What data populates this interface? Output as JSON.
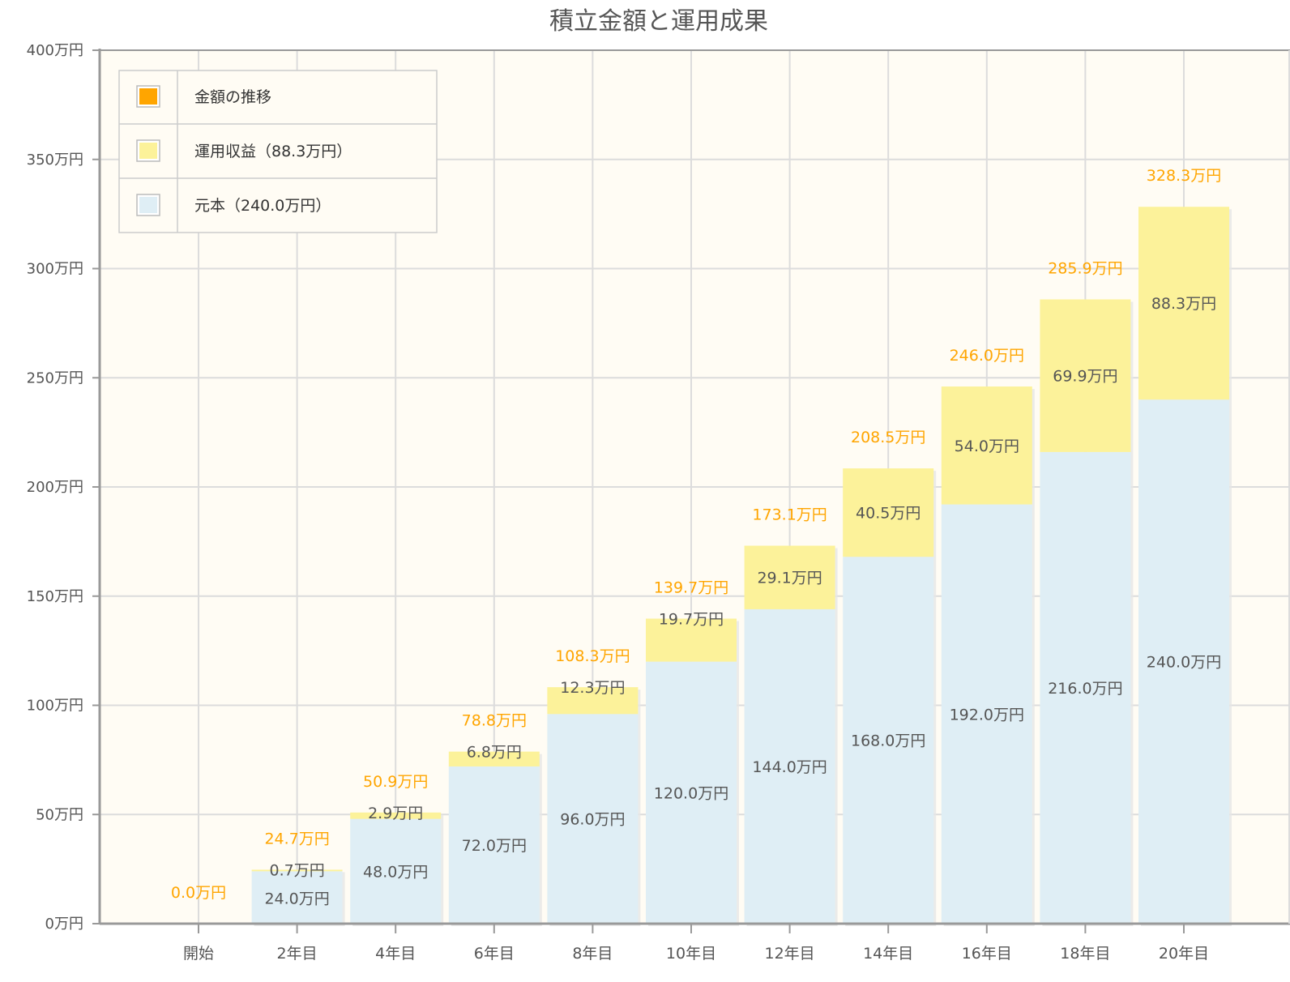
{
  "chart_data": {
    "type": "bar",
    "stacked": true,
    "title": "積立金額と運用成果",
    "categories": [
      "開始",
      "2年目",
      "4年目",
      "6年目",
      "8年目",
      "10年目",
      "12年目",
      "14年目",
      "16年目",
      "18年目",
      "20年目"
    ],
    "y_ticks": [
      "0万円",
      "50万円",
      "100万円",
      "150万円",
      "200万円",
      "250万円",
      "300万円",
      "350万円",
      "400万円"
    ],
    "ylim": [
      0,
      400
    ],
    "series": [
      {
        "name": "元本（240.0万円）",
        "color": "#dfeef5",
        "values": [
          0,
          24.0,
          48.0,
          72.0,
          96.0,
          120.0,
          144.0,
          168.0,
          192.0,
          216.0,
          240.0
        ],
        "labels": [
          "",
          "24.0万円",
          "48.0万円",
          "72.0万円",
          "96.0万円",
          "120.0万円",
          "144.0万円",
          "168.0万円",
          "192.0万円",
          "216.0万円",
          "240.0万円"
        ]
      },
      {
        "name": "運用収益（88.3万円）",
        "color": "#fcf29a",
        "values": [
          0,
          0.7,
          2.9,
          6.8,
          12.3,
          19.7,
          29.1,
          40.5,
          54.0,
          69.9,
          88.3
        ],
        "labels": [
          "",
          "0.7万円",
          "2.9万円",
          "6.8万円",
          "12.3万円",
          "19.7万円",
          "29.1万円",
          "40.5万円",
          "54.0万円",
          "69.9万円",
          "88.3万円"
        ]
      }
    ],
    "totals": {
      "name": "金額の推移",
      "color": "#ffa500",
      "values": [
        0.0,
        24.7,
        50.9,
        78.8,
        108.3,
        139.7,
        173.1,
        208.5,
        246.0,
        285.9,
        328.3
      ],
      "labels": [
        "0.0万円",
        "24.7万円",
        "50.9万円",
        "78.8万円",
        "108.3万円",
        "139.7万円",
        "173.1万円",
        "208.5万円",
        "246.0万円",
        "285.9万円",
        "328.3万円"
      ]
    },
    "legend": {
      "position": "top-left",
      "items": [
        {
          "label": "金額の推移",
          "color": "#ffa500"
        },
        {
          "label": "運用収益（88.3万円）",
          "color": "#fcf29a"
        },
        {
          "label": "元本（240.0万円）",
          "color": "#dfeef5"
        }
      ]
    },
    "grid": true,
    "background": "#fffcf4"
  }
}
